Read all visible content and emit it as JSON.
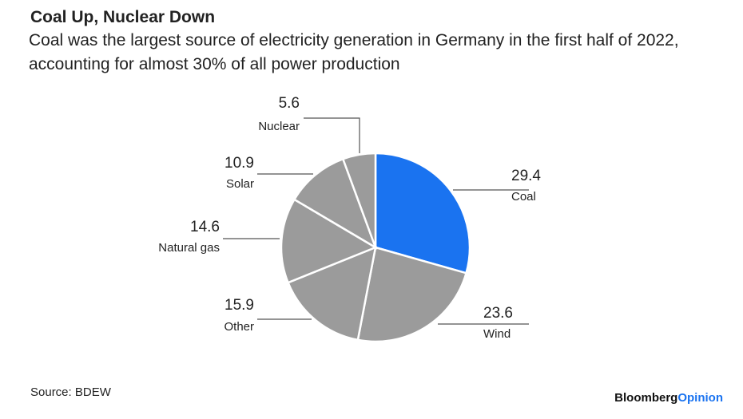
{
  "chart_data": {
    "type": "pie",
    "title": "Coal Up, Nuclear Down",
    "subtitle": "Coal was the largest source of electricity generation in Germany in the first half of 2022, accounting for almost 30% of all power production",
    "categories": [
      "Coal",
      "Wind",
      "Other",
      "Natural gas",
      "Solar",
      "Nuclear"
    ],
    "values": [
      29.4,
      23.6,
      15.9,
      14.6,
      10.9,
      5.6
    ],
    "colors": [
      "#1a73f0",
      "#9b9b9b",
      "#9b9b9b",
      "#9b9b9b",
      "#9b9b9b",
      "#9b9b9b"
    ],
    "source": "Source: BDEW",
    "brand": [
      "Bloomberg",
      "Opinion"
    ]
  }
}
